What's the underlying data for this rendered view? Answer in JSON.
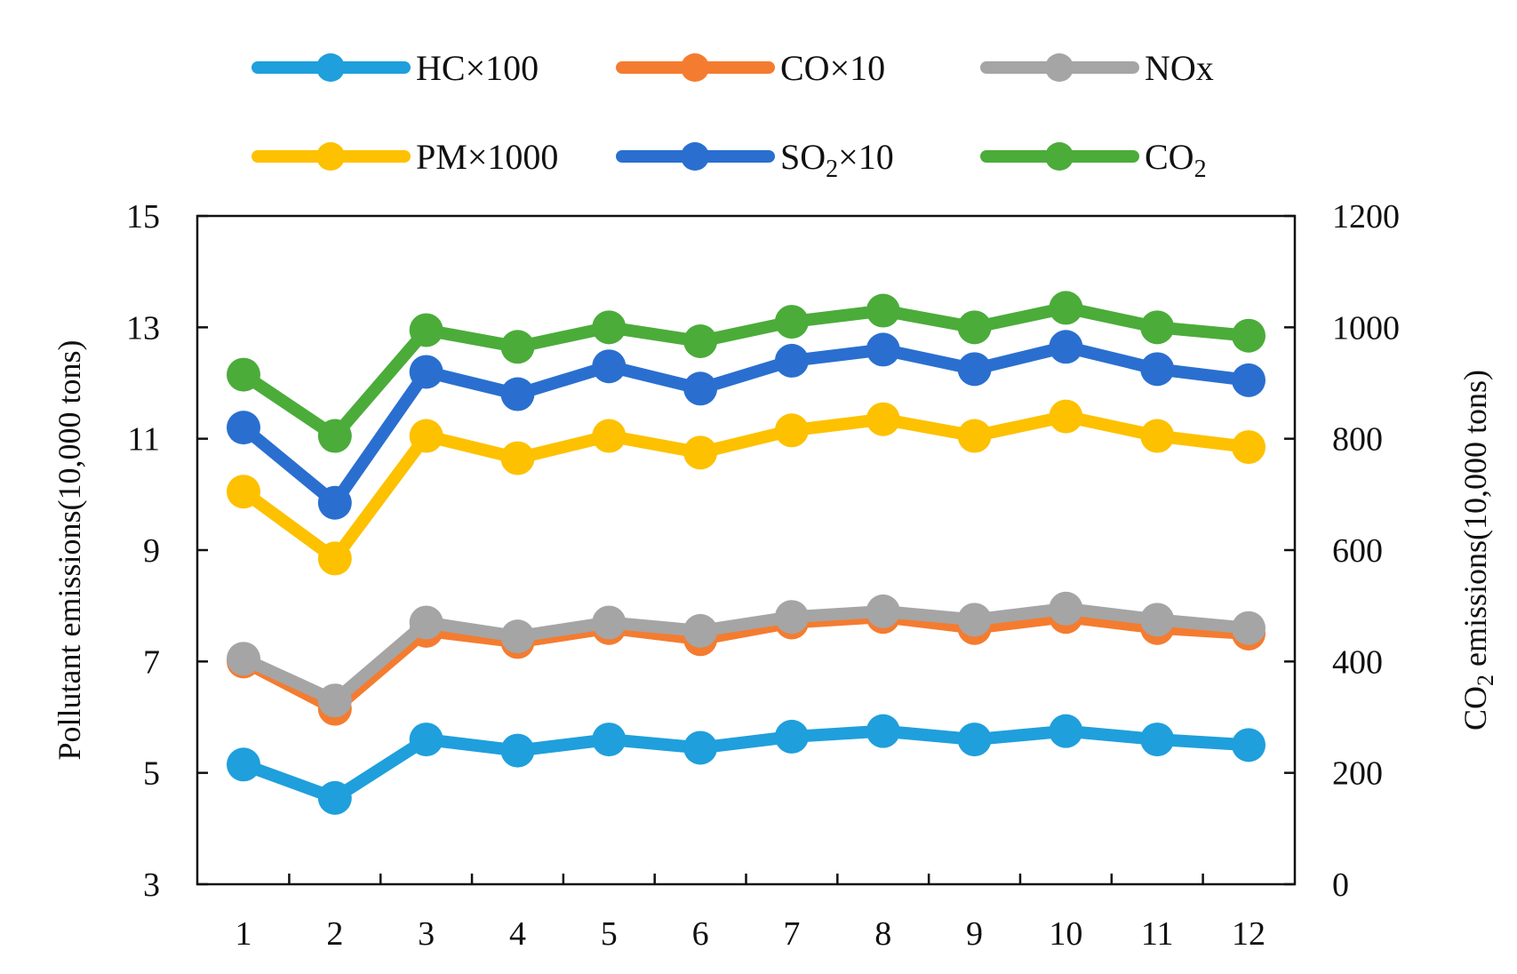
{
  "chart_data": {
    "type": "line",
    "title": "",
    "xlabel": "",
    "ylabel": "Pollutant emissions(10,000 tons)",
    "y2label": {
      "prefix": "CO",
      "sub": "2",
      "suffix": " emissions(10,000 tons)"
    },
    "x": [
      1,
      2,
      3,
      4,
      5,
      6,
      7,
      8,
      9,
      10,
      11,
      12
    ],
    "x_tick_labels": [
      "1",
      "2",
      "3",
      "4",
      "5",
      "6",
      "7",
      "8",
      "9",
      "10",
      "11",
      "12"
    ],
    "ylim": [
      3,
      15
    ],
    "y_ticks": [
      3,
      5,
      7,
      9,
      11,
      13,
      15
    ],
    "y_tick_labels": [
      "3",
      "5",
      "7",
      "9",
      "11",
      "13",
      "15"
    ],
    "y2lim": [
      0,
      1200
    ],
    "y2_ticks": [
      0,
      200,
      400,
      600,
      800,
      1000,
      1200
    ],
    "y2_tick_labels": [
      "0",
      "200",
      "400",
      "600",
      "800",
      "1000",
      "1200"
    ],
    "grid": false,
    "legend_position": "top",
    "series": [
      {
        "key": "hc",
        "name": "HC×100",
        "label_main": "HC×100",
        "label_sub": "",
        "label_tail": "",
        "color": "#1f9fdc",
        "axis": "left",
        "values": [
          5.15,
          4.55,
          5.6,
          5.4,
          5.6,
          5.45,
          5.65,
          5.75,
          5.6,
          5.75,
          5.6,
          5.5
        ]
      },
      {
        "key": "co",
        "name": "CO×10",
        "label_main": "CO×10",
        "label_sub": "",
        "label_tail": "",
        "color": "#f47c30",
        "axis": "left",
        "values": [
          7.0,
          6.15,
          7.55,
          7.35,
          7.6,
          7.4,
          7.7,
          7.8,
          7.6,
          7.8,
          7.6,
          7.5
        ]
      },
      {
        "key": "nox",
        "name": "NOx",
        "label_main": "NOx",
        "label_sub": "",
        "label_tail": "",
        "color": "#a5a5a5",
        "axis": "left",
        "values": [
          7.05,
          6.3,
          7.7,
          7.45,
          7.7,
          7.55,
          7.8,
          7.9,
          7.75,
          7.95,
          7.75,
          7.6
        ]
      },
      {
        "key": "pm",
        "name": "PM×1000",
        "label_main": "PM×1000",
        "label_sub": "",
        "label_tail": "",
        "color": "#fdc100",
        "axis": "left",
        "values": [
          10.05,
          8.85,
          11.05,
          10.65,
          11.05,
          10.75,
          11.15,
          11.35,
          11.05,
          11.4,
          11.05,
          10.85
        ]
      },
      {
        "key": "so2",
        "name": "SO₂×10",
        "label_main": "SO",
        "label_sub": "2",
        "label_tail": "×10",
        "color": "#2a6fcf",
        "axis": "left",
        "values": [
          11.2,
          9.85,
          12.2,
          11.8,
          12.3,
          11.9,
          12.4,
          12.6,
          12.25,
          12.65,
          12.25,
          12.05
        ]
      },
      {
        "key": "co2",
        "name": "CO₂",
        "label_main": "CO",
        "label_sub": "2",
        "label_tail": "",
        "color": "#4bac3a",
        "axis": "right",
        "values": [
          915,
          805,
          995,
          965,
          1000,
          975,
          1010,
          1030,
          1000,
          1035,
          1000,
          985
        ]
      }
    ]
  }
}
